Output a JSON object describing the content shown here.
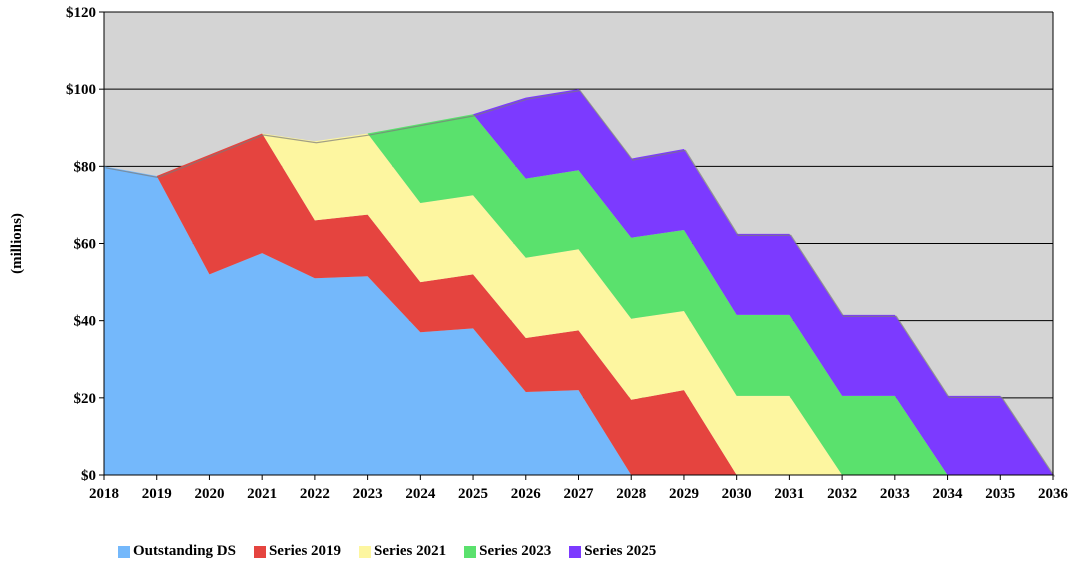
{
  "chart_data": {
    "type": "area",
    "stacked": true,
    "title": "",
    "xlabel": "",
    "ylabel": "(millions)",
    "ylim": [
      0,
      120
    ],
    "y_ticks": [
      0,
      20,
      40,
      60,
      80,
      100,
      120
    ],
    "y_tick_labels": [
      "$0",
      "$20",
      "$40",
      "$60",
      "$80",
      "$100",
      "$120"
    ],
    "x": [
      2018,
      2019,
      2020,
      2021,
      2022,
      2023,
      2024,
      2025,
      2026,
      2027,
      2028,
      2029,
      2030,
      2031,
      2032,
      2033,
      2034,
      2035,
      2036
    ],
    "grid": "horizontal",
    "plot_background": "#d4d4d4",
    "legend_position": "bottom",
    "series": [
      {
        "name": "Outstanding DS",
        "color": "#74b8fb",
        "values": [
          80,
          77.5,
          52,
          57.5,
          51,
          51.5,
          37,
          38,
          21.5,
          22,
          0,
          0,
          0,
          0,
          0,
          0,
          0,
          0,
          0
        ]
      },
      {
        "name": "Series 2019",
        "color": "#e5443f",
        "values": [
          0,
          0,
          31,
          31,
          15,
          16,
          13,
          14,
          14,
          15.5,
          19.5,
          22,
          0,
          0,
          0,
          0,
          0,
          0,
          0
        ]
      },
      {
        "name": "Series 2021",
        "color": "#fdf6a0",
        "values": [
          0,
          0,
          0,
          0,
          20.5,
          21,
          20.5,
          20.5,
          20.8,
          21,
          21,
          20.5,
          20.5,
          20.5,
          0,
          0,
          0,
          0,
          0
        ]
      },
      {
        "name": "Series 2023",
        "color": "#5ae16d",
        "values": [
          0,
          0,
          0,
          0,
          0,
          0,
          20.5,
          21,
          20.5,
          20.5,
          21,
          21,
          21,
          21,
          20.5,
          20.5,
          0,
          0,
          0
        ]
      },
      {
        "name": "Series 2025",
        "color": "#7c3aff",
        "values": [
          0,
          0,
          0,
          0,
          0,
          0,
          0,
          0,
          21,
          21,
          20.5,
          21,
          21,
          21,
          21,
          21,
          20.5,
          20.5,
          0
        ]
      }
    ]
  }
}
